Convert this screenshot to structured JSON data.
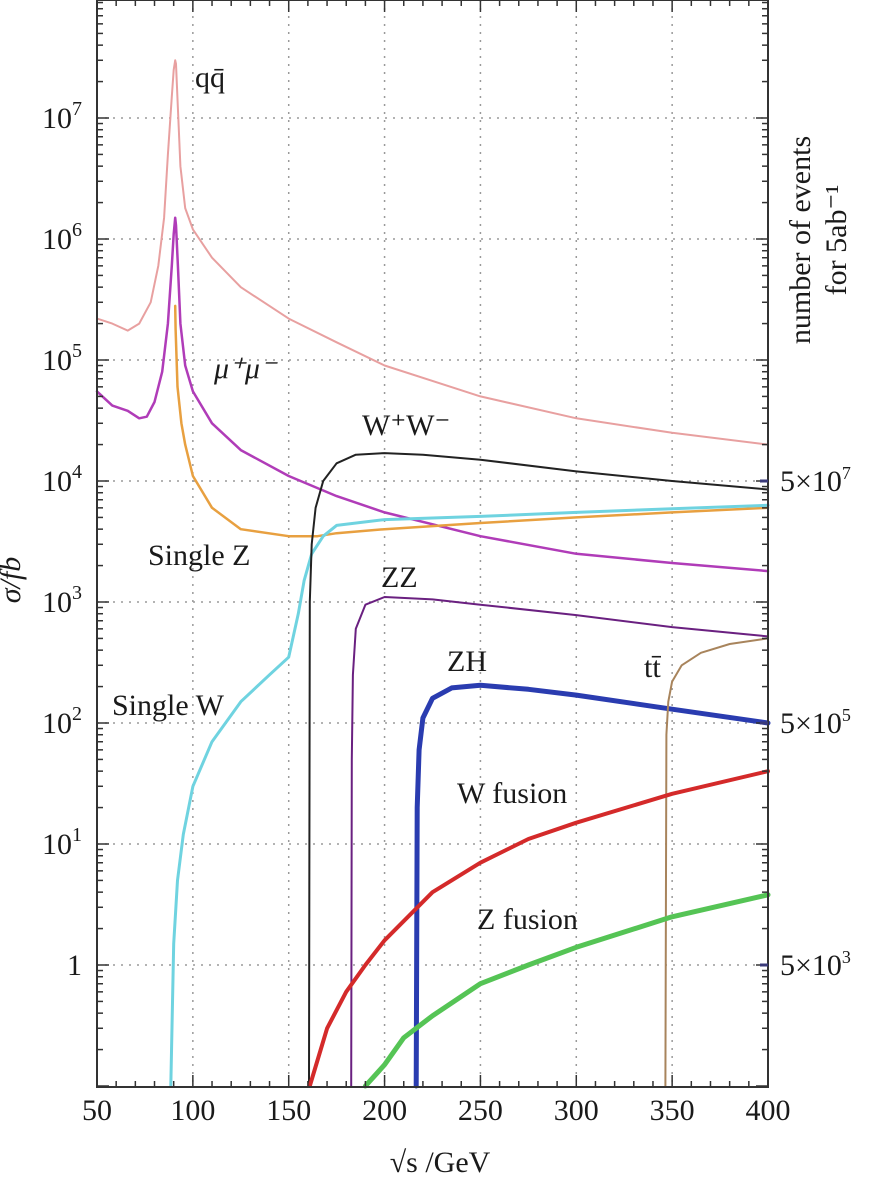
{
  "chart_data": {
    "type": "line",
    "xlabel": "√s /GeV",
    "ylabel": "σ/fb",
    "right_axis_label": [
      "number of events",
      "for 5ab⁻¹"
    ],
    "xlim": [
      50,
      400
    ],
    "ylim": [
      0.1,
      100000000
    ],
    "y_scale": "log",
    "grid": "dotted",
    "x_ticks": [
      {
        "value": 50,
        "label": "50"
      },
      {
        "value": 100,
        "label": "100"
      },
      {
        "value": 150,
        "label": "150"
      },
      {
        "value": 200,
        "label": "200"
      },
      {
        "value": 250,
        "label": "250"
      },
      {
        "value": 300,
        "label": "300"
      },
      {
        "value": 350,
        "label": "350"
      },
      {
        "value": 400,
        "label": "400"
      }
    ],
    "y_ticks": [
      {
        "value": 1,
        "base": "1",
        "exp": ""
      },
      {
        "value": 10,
        "base": "10",
        "exp": "1"
      },
      {
        "value": 100,
        "base": "10",
        "exp": "2"
      },
      {
        "value": 1000,
        "base": "10",
        "exp": "3"
      },
      {
        "value": 10000,
        "base": "10",
        "exp": "4"
      },
      {
        "value": 100000,
        "base": "10",
        "exp": "5"
      },
      {
        "value": 1000000,
        "base": "10",
        "exp": "6"
      },
      {
        "value": 10000000,
        "base": "10",
        "exp": "7"
      }
    ],
    "right_ticks": [
      {
        "value": 1,
        "base": "5×10",
        "exp": "3"
      },
      {
        "value": 100,
        "base": "5×10",
        "exp": "5"
      },
      {
        "value": 10000,
        "base": "5×10",
        "exp": "7"
      }
    ],
    "series": [
      {
        "name": "qq̄",
        "color": "#e8a0a0",
        "stroke": 2,
        "x": [
          50,
          58,
          66,
          72,
          78,
          82,
          85,
          87,
          89,
          90,
          90.8,
          91.2,
          92.2,
          93.5,
          96,
          100,
          110,
          125,
          150,
          175,
          200,
          250,
          300,
          350,
          400
        ],
        "y": [
          220000,
          200000,
          175000,
          200000,
          300000,
          600000,
          1500000,
          5000000,
          15000000,
          25000000,
          30000000,
          28000000,
          12000000,
          4000000,
          1800000,
          1200000,
          700000,
          400000,
          220000,
          140000,
          90000,
          50000,
          33000,
          25000,
          20000
        ]
      },
      {
        "name": "μ⁺μ⁻",
        "color": "#b03cb8",
        "stroke": 2.5,
        "x": [
          50,
          58,
          66,
          72,
          76,
          80,
          84,
          87,
          89,
          90,
          90.8,
          91.2,
          92.2,
          93.5,
          96,
          100,
          110,
          125,
          150,
          175,
          200,
          250,
          300,
          350,
          400
        ],
        "y": [
          55000,
          42000,
          38000,
          33000,
          34000,
          45000,
          80000,
          200000,
          600000,
          1100000,
          1500000,
          1300000,
          600000,
          200000,
          90000,
          55000,
          30000,
          18000,
          11000,
          7500,
          5500,
          3500,
          2500,
          2100,
          1800
        ]
      },
      {
        "name": "Single Z",
        "color": "#e8a040",
        "stroke": 2.5,
        "x": [
          90.8,
          91,
          92,
          94,
          96,
          100,
          110,
          125,
          150,
          165,
          175,
          200,
          250,
          300,
          350,
          400
        ],
        "y": [
          280000,
          180000,
          60000,
          30000,
          20000,
          11000,
          6000,
          4000,
          3500,
          3500,
          3700,
          4000,
          4500,
          5000,
          5500,
          6000
        ]
      },
      {
        "name": "Single W",
        "color": "#6fd3e0",
        "stroke": 3,
        "x": [
          88.5,
          90,
          92,
          95,
          100,
          110,
          125,
          140,
          150,
          155,
          158,
          162,
          168,
          175,
          200,
          250,
          300,
          350,
          400
        ],
        "y": [
          0.1,
          1.5,
          5,
          12,
          30,
          70,
          150,
          250,
          350,
          800,
          1500,
          2500,
          3500,
          4300,
          4800,
          5100,
          5500,
          5900,
          6300
        ]
      },
      {
        "name": "W⁺W⁻",
        "color": "#222222",
        "stroke": 2,
        "x": [
          160.6,
          161,
          162,
          164,
          168,
          175,
          185,
          200,
          220,
          250,
          300,
          350,
          400
        ],
        "y": [
          0.1,
          1000,
          3000,
          6000,
          10000,
          14000,
          16500,
          17000,
          16500,
          15000,
          12000,
          10000,
          8500
        ]
      },
      {
        "name": "ZZ",
        "color": "#6a2080",
        "stroke": 2,
        "x": [
          182.6,
          182.9,
          183.5,
          185,
          190,
          200,
          225,
          250,
          300,
          350,
          400
        ],
        "y": [
          0.1,
          50,
          250,
          600,
          950,
          1100,
          1050,
          950,
          780,
          620,
          520
        ]
      },
      {
        "name": "ZH",
        "color": "#2a3cb0",
        "stroke": 5,
        "x": [
          216.5,
          217,
          218,
          220,
          225,
          235,
          250,
          275,
          300,
          350,
          400
        ],
        "y": [
          0.1,
          20,
          60,
          110,
          160,
          195,
          205,
          190,
          170,
          130,
          100
        ]
      },
      {
        "name": "tt̄",
        "color": "#a8845c",
        "stroke": 2,
        "x": [
          346.5,
          347,
          348,
          350,
          355,
          365,
          380,
          400
        ],
        "y": [
          0.1,
          80,
          150,
          220,
          300,
          380,
          450,
          500
        ]
      },
      {
        "name": "W fusion",
        "color": "#d42a2a",
        "stroke": 4,
        "x": [
          161,
          170,
          180,
          190,
          200,
          225,
          250,
          275,
          300,
          350,
          400
        ],
        "y": [
          0.1,
          0.3,
          0.6,
          1,
          1.6,
          4,
          7,
          11,
          15,
          26,
          40
        ]
      },
      {
        "name": "Z fusion",
        "color": "#55c455",
        "stroke": 5,
        "x": [
          190,
          200,
          210,
          225,
          250,
          275,
          300,
          350,
          400
        ],
        "y": [
          0.1,
          0.15,
          0.25,
          0.38,
          0.7,
          1,
          1.4,
          2.5,
          3.8
        ]
      }
    ],
    "annotations": [
      {
        "id": "qq",
        "text": "qq̄"
      },
      {
        "id": "mumu",
        "text": "μ⁺μ⁻"
      },
      {
        "id": "ww",
        "text": "W⁺W⁻"
      },
      {
        "id": "singlez",
        "text": "Single Z"
      },
      {
        "id": "zz",
        "text": "ZZ"
      },
      {
        "id": "zh",
        "text": "ZH"
      },
      {
        "id": "tt",
        "text": "tt̄"
      },
      {
        "id": "singlew",
        "text": "Single W"
      },
      {
        "id": "wfusion",
        "text": "W fusion"
      },
      {
        "id": "zfusion",
        "text": "Z fusion"
      }
    ]
  }
}
